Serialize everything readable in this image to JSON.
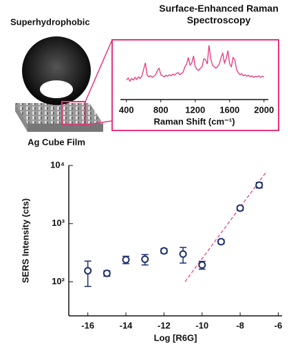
{
  "illustration": {
    "title": "Superhydrophobic",
    "caption": "Ag Cube Film"
  },
  "chart_data": [
    {
      "type": "line",
      "title": "Surface-Enhanced Raman Spectroscopy",
      "x_label": "Raman Shift (cm⁻¹)",
      "color": "#e8337a",
      "xlim": [
        330,
        2050
      ],
      "xticks": [
        400,
        800,
        1200,
        1600,
        2000
      ],
      "ylim": [
        0,
        100
      ],
      "x": [
        400,
        420,
        440,
        460,
        480,
        500,
        520,
        540,
        560,
        580,
        600,
        620,
        640,
        660,
        680,
        700,
        720,
        740,
        760,
        780,
        800,
        820,
        840,
        860,
        880,
        900,
        920,
        940,
        960,
        980,
        1000,
        1020,
        1040,
        1060,
        1080,
        1100,
        1120,
        1140,
        1160,
        1180,
        1200,
        1220,
        1240,
        1260,
        1280,
        1300,
        1320,
        1340,
        1360,
        1380,
        1400,
        1420,
        1440,
        1460,
        1480,
        1500,
        1520,
        1540,
        1560,
        1580,
        1600,
        1620,
        1640,
        1660,
        1680,
        1700,
        1720,
        1740,
        1760,
        1780,
        1800,
        1820,
        1840,
        1860,
        1880,
        1900,
        1920,
        1940,
        1960,
        1980,
        2000
      ],
      "values": [
        30,
        34,
        28,
        33,
        30,
        35,
        31,
        36,
        33,
        38,
        50,
        62,
        40,
        36,
        38,
        35,
        37,
        40,
        48,
        52,
        40,
        38,
        36,
        39,
        37,
        40,
        38,
        41,
        39,
        42,
        44,
        40,
        42,
        45,
        55,
        60,
        72,
        58,
        62,
        75,
        55,
        50,
        48,
        52,
        55,
        70,
        68,
        60,
        95,
        70,
        58,
        55,
        52,
        55,
        60,
        72,
        80,
        62,
        70,
        85,
        60,
        55,
        72,
        68,
        50,
        44,
        40,
        42,
        38,
        40,
        37,
        39,
        36,
        38,
        35,
        37,
        36,
        38,
        35,
        37,
        36
      ]
    },
    {
      "type": "scatter",
      "x_label": "Log [R6G]",
      "y_label": "SERS Intensity (cts)",
      "color": "#1c2f6e",
      "log_y": true,
      "xlim": [
        -17,
        -5.8
      ],
      "xticks": [
        -16,
        -14,
        -12,
        -10,
        -8,
        -6
      ],
      "ylim": [
        26,
        10000
      ],
      "yticks": [
        {
          "value": 100,
          "label": "10²"
        },
        {
          "value": 1000,
          "label": "10³"
        },
        {
          "value": 10000,
          "label": "10⁴"
        }
      ],
      "x": [
        -16,
        -15,
        -14,
        -13,
        -12,
        -11,
        -10,
        -9,
        -8,
        -7
      ],
      "values": [
        155,
        140,
        240,
        245,
        340,
        300,
        195,
        490,
        1850,
        4600
      ],
      "errors": [
        72,
        15,
        35,
        50,
        30,
        90,
        30,
        40,
        150,
        500
      ],
      "fit_line": {
        "x": [
          -10.9,
          -6.6
        ],
        "values": [
          100,
          8000
        ],
        "color": "#e8337a"
      }
    }
  ]
}
